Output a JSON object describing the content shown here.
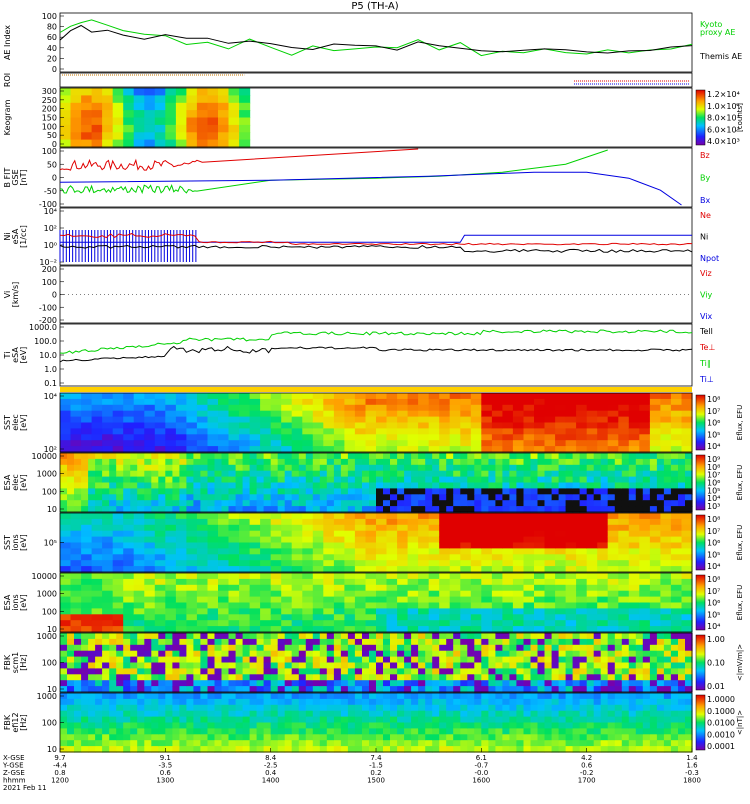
{
  "chart_data": {
    "title": "P5 (TH-A)",
    "date": "2021 Feb 11",
    "colors": {
      "red": "#e00000",
      "green": "#00d000",
      "blue": "#0000e0",
      "black": "#000000",
      "orange": "#c87800"
    },
    "panels": [
      {
        "id": "ae",
        "type": "line",
        "ylabel": [
          "AE Index"
        ],
        "yticks": [
          "100",
          "80",
          "60",
          "40",
          "20",
          "0"
        ],
        "legend": [
          {
            "text": "Kyoto",
            "color": "#00d000"
          },
          {
            "text": "proxy AE",
            "color": "#00d000"
          },
          {
            "text": "Themis AE",
            "color": "#000000"
          }
        ],
        "series": [
          {
            "name": "Kyoto proxy AE",
            "color": "#00d000",
            "x": [
              1200,
              1210,
              1220,
              1230,
              1245,
              1260,
              1280,
              1300,
              1320,
              1340,
              1360,
              1380,
              1400,
              1420,
              1440,
              1460,
              1480,
              1500,
              1520,
              1540,
              1560,
              1580,
              1600,
              1620,
              1640,
              1660,
              1680,
              1700,
              1720,
              1740,
              1760,
              1780,
              1800
            ],
            "y": [
              70,
              75,
              85,
              90,
              78,
              70,
              65,
              60,
              45,
              50,
              38,
              55,
              40,
              30,
              45,
              35,
              38,
              45,
              40,
              55,
              35,
              48,
              30,
              35,
              30,
              38,
              32,
              30,
              35,
              30,
              38,
              40,
              45
            ]
          },
          {
            "name": "Themis AE",
            "color": "#000000",
            "x": [
              1200,
              1210,
              1220,
              1230,
              1245,
              1260,
              1280,
              1300,
              1320,
              1340,
              1360,
              1380,
              1400,
              1420,
              1440,
              1460,
              1480,
              1500,
              1520,
              1540,
              1560,
              1580,
              1600,
              1620,
              1640,
              1660,
              1680,
              1700,
              1720,
              1740,
              1760,
              1780,
              1800
            ],
            "y": [
              55,
              72,
              80,
              68,
              72,
              60,
              55,
              62,
              55,
              60,
              50,
              52,
              48,
              42,
              40,
              45,
              48,
              45,
              38,
              50,
              42,
              40,
              38,
              35,
              38,
              40,
              38,
              35,
              32,
              35,
              38,
              40,
              45
            ]
          }
        ]
      },
      {
        "id": "roi",
        "type": "strip",
        "ylabel": [
          "ROI"
        ],
        "yticks": []
      },
      {
        "id": "keogram",
        "type": "heatmap",
        "ylabel": [
          "Keogram"
        ],
        "yticks": [
          "300",
          "250",
          "200",
          "150",
          "100",
          "50",
          "0"
        ],
        "colorbar": {
          "labels": [
            "1.2×10⁴",
            "1.0×10⁴",
            "8.0×10³",
            "6.0×10³",
            "4.0×10³"
          ],
          "unit": "[counts]"
        }
      },
      {
        "id": "bfield",
        "type": "line",
        "ylabel": [
          "B FIT",
          "GSE",
          "[nT]"
        ],
        "yticks": [
          "100",
          "50",
          "0",
          "-50",
          "-100"
        ],
        "legend": [
          {
            "text": "Bz",
            "color": "#e00000"
          },
          {
            "text": "By",
            "color": "#00d000"
          },
          {
            "text": "Bx",
            "color": "#0000e0"
          }
        ]
      },
      {
        "id": "density",
        "type": "line",
        "ylabel": [
          "Ni",
          "eSA",
          "[1/cc]"
        ],
        "yticks": [
          "10⁴",
          "10²",
          "10⁰",
          "10⁻²"
        ],
        "legend": [
          {
            "text": "Ne",
            "color": "#e00000"
          },
          {
            "text": "Ni",
            "color": "#000000"
          },
          {
            "text": "Npot",
            "color": "#0000e0"
          }
        ]
      },
      {
        "id": "velocity",
        "type": "line",
        "ylabel": [
          "Vi",
          "[km/s]"
        ],
        "yticks": [
          "200",
          "100",
          "0",
          "-100",
          "-200"
        ],
        "legend": [
          {
            "text": "Viz",
            "color": "#e00000"
          },
          {
            "text": "Viy",
            "color": "#00d000"
          },
          {
            "text": "Vix",
            "color": "#0000e0"
          }
        ]
      },
      {
        "id": "temp",
        "type": "line",
        "ylabel": [
          "Ti",
          "eSA",
          "[eV]"
        ],
        "yticks": [
          "1000.0",
          "100.0",
          "10.0",
          "1.0",
          "0.1"
        ],
        "legend": [
          {
            "text": "Tell",
            "color": "#000000"
          },
          {
            "text": "Te⊥",
            "color": "#e00000"
          },
          {
            "text": "Ti∥",
            "color": "#00d000"
          },
          {
            "text": "Ti⊥",
            "color": "#0000e0"
          }
        ]
      },
      {
        "id": "sst_e",
        "type": "spectrogram",
        "ylabel": [
          "SST",
          "elec",
          "[eV]"
        ],
        "yticks": [
          "10⁴",
          "10²"
        ],
        "colorbar": {
          "labels": [
            "10⁸",
            "10⁷",
            "10⁶",
            "10⁵",
            "10⁴"
          ],
          "unit": "Eflux, EFU"
        }
      },
      {
        "id": "esa_e",
        "type": "spectrogram",
        "ylabel": [
          "ESA",
          "elec",
          "[eV]"
        ],
        "yticks": [
          "10000",
          "1000",
          "100",
          "10"
        ],
        "colorbar": {
          "labels": [
            "10⁹",
            "10⁸",
            "10⁷",
            "10⁶",
            "10⁵",
            "10⁴",
            "10³"
          ],
          "unit": "Eflux, EFU"
        }
      },
      {
        "id": "sst_i",
        "type": "spectrogram",
        "ylabel": [
          "SST",
          "ions",
          "[eV]"
        ],
        "yticks": [
          "10⁵"
        ],
        "colorbar": {
          "labels": [
            "10⁸",
            "10⁷",
            "10⁶",
            "10⁵",
            "10⁴"
          ],
          "unit": "Eflux, EFU"
        }
      },
      {
        "id": "esa_i",
        "type": "spectrogram",
        "ylabel": [
          "ESA",
          "ions",
          "[eV]"
        ],
        "yticks": [
          "10000",
          "1000",
          "100",
          "10"
        ],
        "colorbar": {
          "labels": [
            "10⁸",
            "10⁷",
            "10⁶",
            "10⁵",
            "10⁴"
          ],
          "unit": "Eflux, EFU"
        }
      },
      {
        "id": "fbk_b",
        "type": "spectrogram",
        "ylabel": [
          "FBK",
          "scm1",
          "[Hz]"
        ],
        "yticks": [
          "1000",
          "100",
          "10"
        ],
        "colorbar": {
          "labels": [
            "1.00",
            "0.10",
            "0.01"
          ],
          "unit": "<|mV/m|>"
        }
      },
      {
        "id": "fbk_e",
        "type": "spectrogram",
        "ylabel": [
          "FBK",
          "efi12",
          "[Hz]"
        ],
        "yticks": [
          "1000",
          "100",
          "10"
        ],
        "colorbar": {
          "labels": [
            "1.0000",
            "0.1000",
            "0.0100",
            "0.0010",
            "0.0001"
          ],
          "unit": "<|nT|>"
        }
      }
    ],
    "x_axis": {
      "row_labels": [
        "X-GSE",
        "Y-GSE",
        "Z-GSE",
        "hhmm",
        "2021 Feb 11"
      ],
      "ticks": [
        {
          "x": "9.7",
          "y": "-4.4",
          "z": "0.8",
          "t": "1200"
        },
        {
          "x": "9.1",
          "y": "-3.5",
          "z": "0.6",
          "t": "1300"
        },
        {
          "x": "8.4",
          "y": "-2.5",
          "z": "0.4",
          "t": "1400"
        },
        {
          "x": "7.4",
          "y": "-1.5",
          "z": "0.2",
          "t": "1500"
        },
        {
          "x": "6.1",
          "y": "-0.7",
          "z": "-0.0",
          "t": "1600"
        },
        {
          "x": "4.2",
          "y": "0.6",
          "z": "-0.2",
          "t": "1700"
        },
        {
          "x": "1.4",
          "y": "1.6",
          "z": "-0.3",
          "t": "1800"
        }
      ]
    }
  }
}
